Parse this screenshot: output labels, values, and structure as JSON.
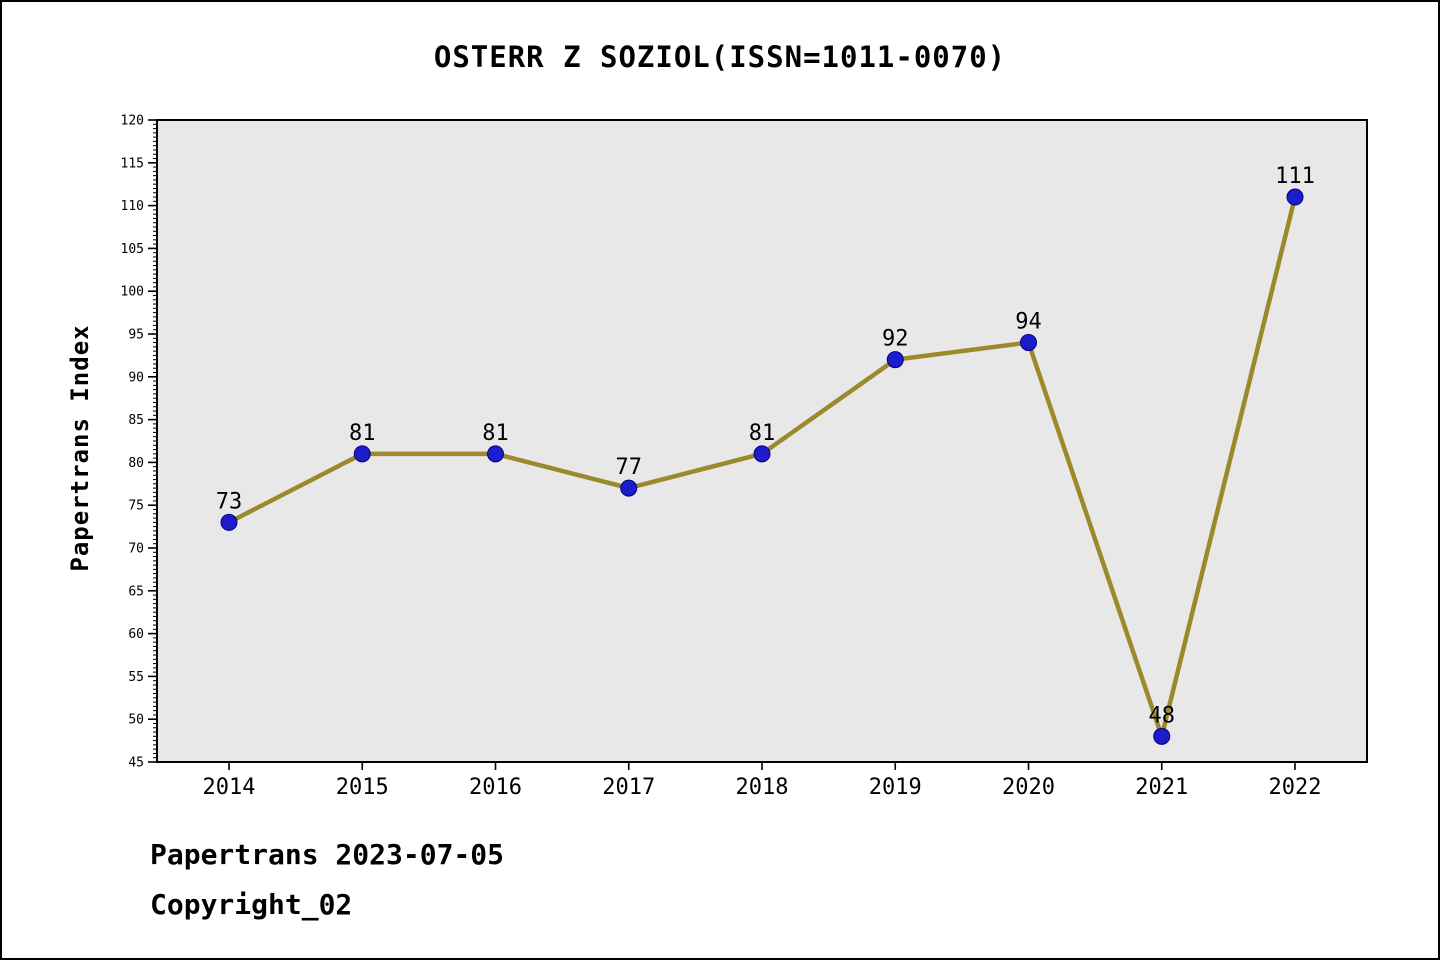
{
  "page": {
    "title": "OSTERR Z SOZIOL(ISSN=1011-0070)",
    "footer_line1": "Papertrans 2023-07-05",
    "footer_line2": "Copyright_02"
  },
  "chart_data": {
    "type": "line",
    "title": "OSTERR Z SOZIOL(ISSN=1011-0070)",
    "categories": [
      "2014",
      "2015",
      "2016",
      "2017",
      "2018",
      "2019",
      "2020",
      "2021",
      "2022"
    ],
    "values": [
      73,
      81,
      81,
      77,
      81,
      92,
      94,
      48,
      111
    ],
    "point_labels": [
      "73",
      "81",
      "81",
      "77",
      "81",
      "92",
      "94",
      "48",
      "111"
    ],
    "xlabel": "",
    "ylabel": "Papertrans Index",
    "ylim": [
      45,
      120
    ],
    "y_major_step": 5,
    "y_minor_step": 0.5,
    "grid": false,
    "legend": "none",
    "colors": {
      "line": "#9b8a2c",
      "marker_fill": "#1c1ccd",
      "marker_edge": "#000080",
      "plot_background": "#e8e8e8",
      "axis": "#000000",
      "text": "#000000"
    }
  }
}
